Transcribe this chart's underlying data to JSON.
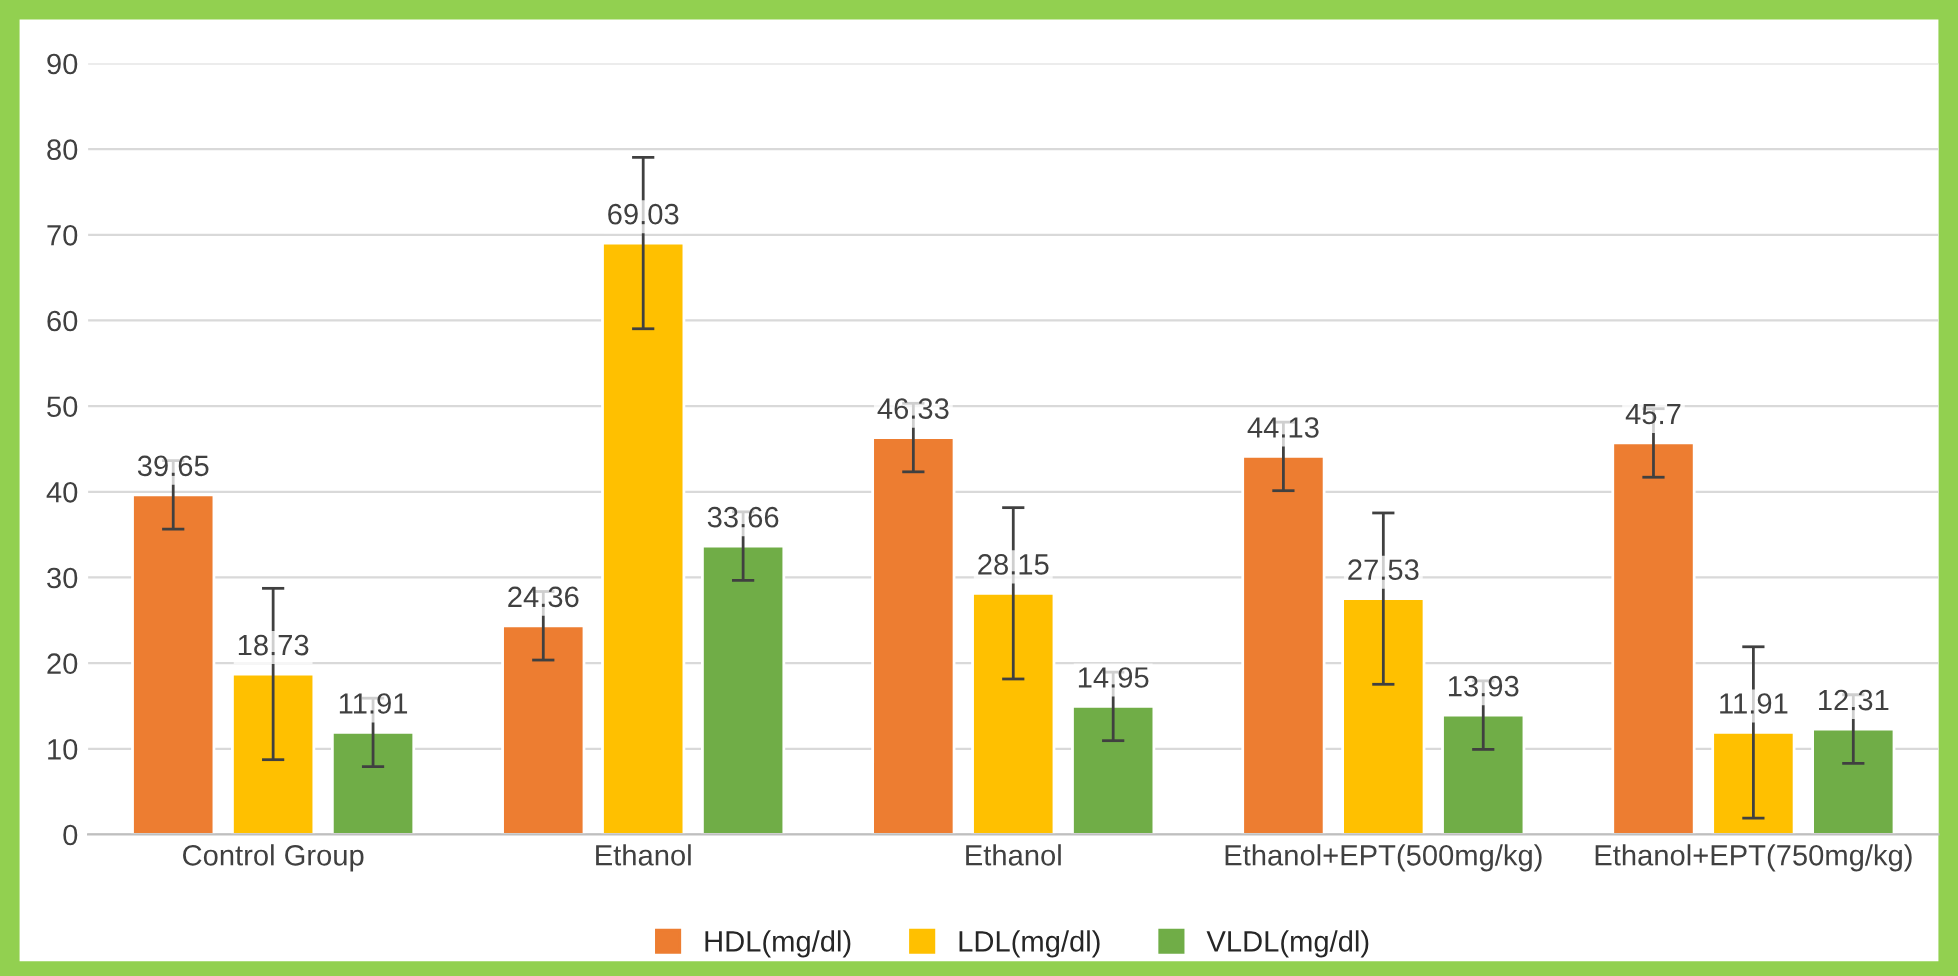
{
  "chart_data": {
    "type": "bar",
    "categories": [
      "Control Group",
      "Ethanol",
      "Ethanol",
      "Ethanol+EPT(500mg/kg)",
      "Ethanol+EPT(750mg/kg)"
    ],
    "series": [
      {
        "name": "HDL(mg/dl)",
        "color": "#ed7d31",
        "values": [
          39.65,
          24.36,
          46.33,
          44.13,
          45.7
        ],
        "errors": [
          4,
          4,
          4,
          4,
          4
        ]
      },
      {
        "name": "LDL(mg/dl)",
        "color": "#ffc000",
        "values": [
          18.73,
          69.03,
          28.15,
          27.53,
          11.91
        ],
        "errors": [
          10,
          10,
          10,
          10,
          10
        ]
      },
      {
        "name": "VLDL(mg/dl)",
        "color": "#70ad47",
        "values": [
          11.91,
          33.66,
          14.95,
          13.93,
          12.31
        ],
        "errors": [
          4,
          4,
          4,
          4,
          4
        ]
      }
    ],
    "ylim": [
      0,
      90
    ],
    "yticks": [
      0,
      10,
      20,
      30,
      40,
      50,
      60,
      70,
      80,
      90
    ],
    "grid": "y",
    "legend": "bottom",
    "data_labels": true
  }
}
